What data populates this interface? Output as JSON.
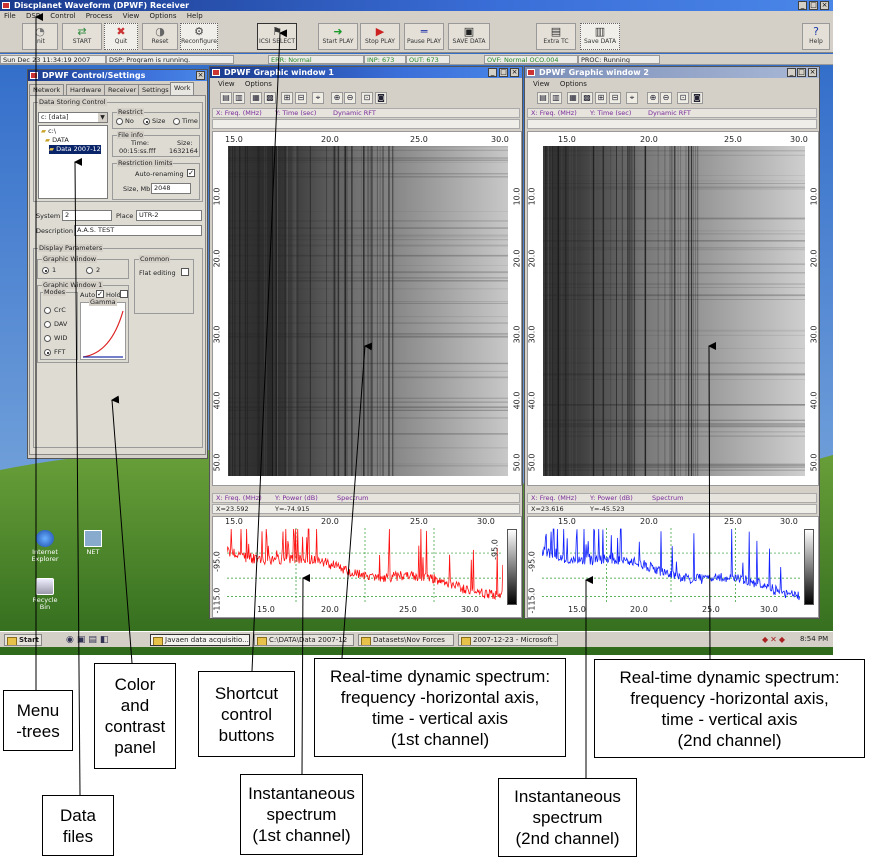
{
  "app": {
    "title": "Discplanet Waveform (DPWF) Receiver",
    "menu": [
      "File",
      "DSP",
      "Control",
      "Process",
      "View",
      "Options",
      "Help"
    ]
  },
  "toolbar": {
    "buttons": [
      {
        "label": "Init",
        "icon": "init-icon"
      },
      {
        "label": "START",
        "icon": "start-icon"
      },
      {
        "label": "Quit",
        "icon": "quit-icon"
      },
      {
        "label": "Reset",
        "icon": "reset-icon"
      },
      {
        "label": "Reconfigure",
        "icon": "reconfigure-icon"
      },
      {
        "label": "ICSI SELECT",
        "icon": "select-icon"
      },
      {
        "label": "Start PLAY",
        "icon": "start-play-icon"
      },
      {
        "label": "Stop PLAY",
        "icon": "stop-play-icon"
      },
      {
        "label": "Pause PLAY",
        "icon": "pause-play-icon"
      },
      {
        "label": "SAVE DATA",
        "icon": "save-data-icon"
      },
      {
        "label": "Extra TC",
        "icon": "extra-tc-icon"
      },
      {
        "label": "Save DATA",
        "icon": "save-icon"
      },
      {
        "label": "Help",
        "icon": "help-icon"
      }
    ]
  },
  "status": {
    "datetime": "Sun Dec 23 11:34:19 2007",
    "dsp": "DSP: Program is running.",
    "err": "ERR: Normal",
    "inp": "INP: 673",
    "out": "OUT: 673",
    "ovf": "OVF: Normal OCO.004",
    "proc": "PROC: Running"
  },
  "control_panel": {
    "title": "DPWF Control/Settings",
    "tabs": [
      "Network",
      "Hardware",
      "Receiver",
      "Settings",
      "Work"
    ],
    "data_storing_title": "Data Storing Control",
    "drive": "c: [data]",
    "tree": [
      "c:\\",
      "DATA",
      "Data 2007-12"
    ],
    "restrict_title": "Restrict",
    "restrict_options": [
      "No",
      "Size",
      "Time"
    ],
    "file_info_title": "File info",
    "time_label": "Time:",
    "time_value": "00:15:ss.fff",
    "size_label": "Size:",
    "size_value": "1632164",
    "restrict_limits_title": "Restriction limits",
    "auto_rename": "Auto-renaming",
    "size_mb_label": "Size, Mb",
    "size_mb_value": "2048",
    "system_label": "System",
    "system_value": "2",
    "place_label": "Place",
    "place_value": "UTR-2",
    "description_label": "Description",
    "description_value": "A.A.S. TEST",
    "display_params_title": "Display Parameters",
    "graphic_window_title": "Graphic Window",
    "gw_options": [
      "1",
      "2"
    ],
    "common_title": "Common",
    "flat_title": "Flat editing",
    "gw1_title": "Graphic Window 1",
    "modes_title": "Modes",
    "mode_options": [
      "CrC",
      "DAV",
      "WID",
      "FFT"
    ],
    "auto_label": "Auto",
    "hold_label": "Hold",
    "gamma_title": "Gamma"
  },
  "graphic_windows": [
    {
      "title": "DPWF Graphic window 1",
      "menu": [
        "View",
        "Options"
      ],
      "top_header": [
        "X: Freq. (MHz)",
        "Y: Time (sec)",
        "Dynamic RFT"
      ],
      "x_ticks": [
        "15.0",
        "20.0",
        "25.0",
        "30.0"
      ],
      "y_ticks": [
        "10.0",
        "20.0",
        "30.0",
        "40.0",
        "50.0"
      ],
      "bottom_header": [
        "X: Freq. (MHz)",
        "Y: Power (dB)",
        "Spectrum"
      ],
      "bottom_values": [
        "X=23.592",
        "Y=-74.915"
      ],
      "spec_y_ticks": [
        "-95.0",
        "-115.0"
      ],
      "spec_x_ticks": [
        "15.0",
        "20.0",
        "25.0",
        "30.0"
      ],
      "spec_color": "#ff1010"
    },
    {
      "title": "DPWF Graphic window 2",
      "menu": [
        "View",
        "Options"
      ],
      "top_header": [
        "X: Freq. (MHz)",
        "Y: Time (sec)",
        "Dynamic RFT"
      ],
      "x_ticks": [
        "15.0",
        "20.0",
        "25.0",
        "30.0"
      ],
      "y_ticks": [
        "10.0",
        "20.0",
        "30.0",
        "40.0",
        "50.0"
      ],
      "bottom_header": [
        "X: Freq. (MHz)",
        "Y: Power (dB)",
        "Spectrum"
      ],
      "bottom_values": [
        "X=23.616",
        "Y=-45.523"
      ],
      "spec_y_ticks": [
        "-95.0",
        "-115.0"
      ],
      "spec_x_ticks": [
        "15.0",
        "20.0",
        "25.0",
        "30.0"
      ],
      "spec_color": "#1020ff"
    }
  ],
  "desktop_icons": [
    "Internet Explorer",
    "NET",
    "Recycle Bin"
  ],
  "taskbar": {
    "start": "Start",
    "tasks": [
      "Javaen data acquisitio...",
      "C:\\DATA\\Data 2007-12",
      "Datasets\\Nov Forces",
      "2007-12-23 - Microsoft ..."
    ],
    "clock": "8:54 PM"
  },
  "callouts": {
    "menu_trees": "Menu\n-trees",
    "data_files": "Data\nfiles",
    "color_contrast": "Color\nand\ncontrast\npanel",
    "shortcut": "Shortcut\ncontrol\nbuttons",
    "rt_dynamic_1": "Real-time dynamic spectrum:\nfrequency -horizontal axis,\ntime - vertical axis",
    "rt_dynamic_1_channel": "(1st channel)",
    "rt_dynamic_2": "Real-time dynamic spectrum:\nfrequency -horizontal axis,\ntime - vertical axis",
    "rt_dynamic_2_channel": "(2nd channel)",
    "inst_1": "Instantaneous\nspectrum",
    "inst_1_channel": "(1st channel)",
    "inst_2": "Instantaneous\nspectrum",
    "inst_2_channel": "(2nd channel)"
  }
}
